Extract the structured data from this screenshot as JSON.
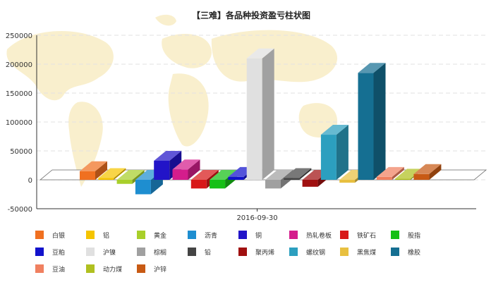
{
  "chart_data": {
    "type": "bar",
    "title": "【三难】各品种投资盈亏柱状图",
    "xlabel": "",
    "ylabel": "",
    "categories": [
      "2016-09-30"
    ],
    "ylim": [
      -50000,
      250000
    ],
    "yticks": [
      -50000,
      0,
      50000,
      100000,
      150000,
      200000,
      250000
    ],
    "grid": true,
    "legend_position": "bottom",
    "series": [
      {
        "name": "白银",
        "values": [
          15000
        ],
        "color": "#f07020"
      },
      {
        "name": "铝",
        "values": [
          3000
        ],
        "color": "#f5c400"
      },
      {
        "name": "黄金",
        "values": [
          -7000
        ],
        "color": "#a8cf2a"
      },
      {
        "name": "沥青",
        "values": [
          -25000
        ],
        "color": "#1e8ed0"
      },
      {
        "name": "铜",
        "values": [
          33000
        ],
        "color": "#2214c8"
      },
      {
        "name": "热轧卷板",
        "values": [
          18000
        ],
        "color": "#d41d8c"
      },
      {
        "name": "铁矿石",
        "values": [
          -15000
        ],
        "color": "#d81818"
      },
      {
        "name": "股指",
        "values": [
          -15000
        ],
        "color": "#16c016"
      },
      {
        "name": "豆粕",
        "values": [
          5000
        ],
        "color": "#1212cc"
      },
      {
        "name": "沪镍",
        "values": [
          210000
        ],
        "color": "#e0e0e0"
      },
      {
        "name": "棕榈",
        "values": [
          -15000
        ],
        "color": "#a0a0a0"
      },
      {
        "name": "铅",
        "values": [
          3000
        ],
        "color": "#444444"
      },
      {
        "name": "聚丙烯",
        "values": [
          -12000
        ],
        "color": "#a01010"
      },
      {
        "name": "螺纹钢",
        "values": [
          78000
        ],
        "color": "#2c9fbf"
      },
      {
        "name": "黑焦煤",
        "values": [
          -5000
        ],
        "color": "#e8c040"
      },
      {
        "name": "橡胶",
        "values": [
          185000
        ],
        "color": "#156f92"
      },
      {
        "name": "豆油",
        "values": [
          5000
        ],
        "color": "#f08060"
      },
      {
        "name": "动力煤",
        "values": [
          2000
        ],
        "color": "#b0c020"
      },
      {
        "name": "沪锌",
        "values": [
          10000
        ],
        "color": "#c85a14"
      }
    ]
  }
}
